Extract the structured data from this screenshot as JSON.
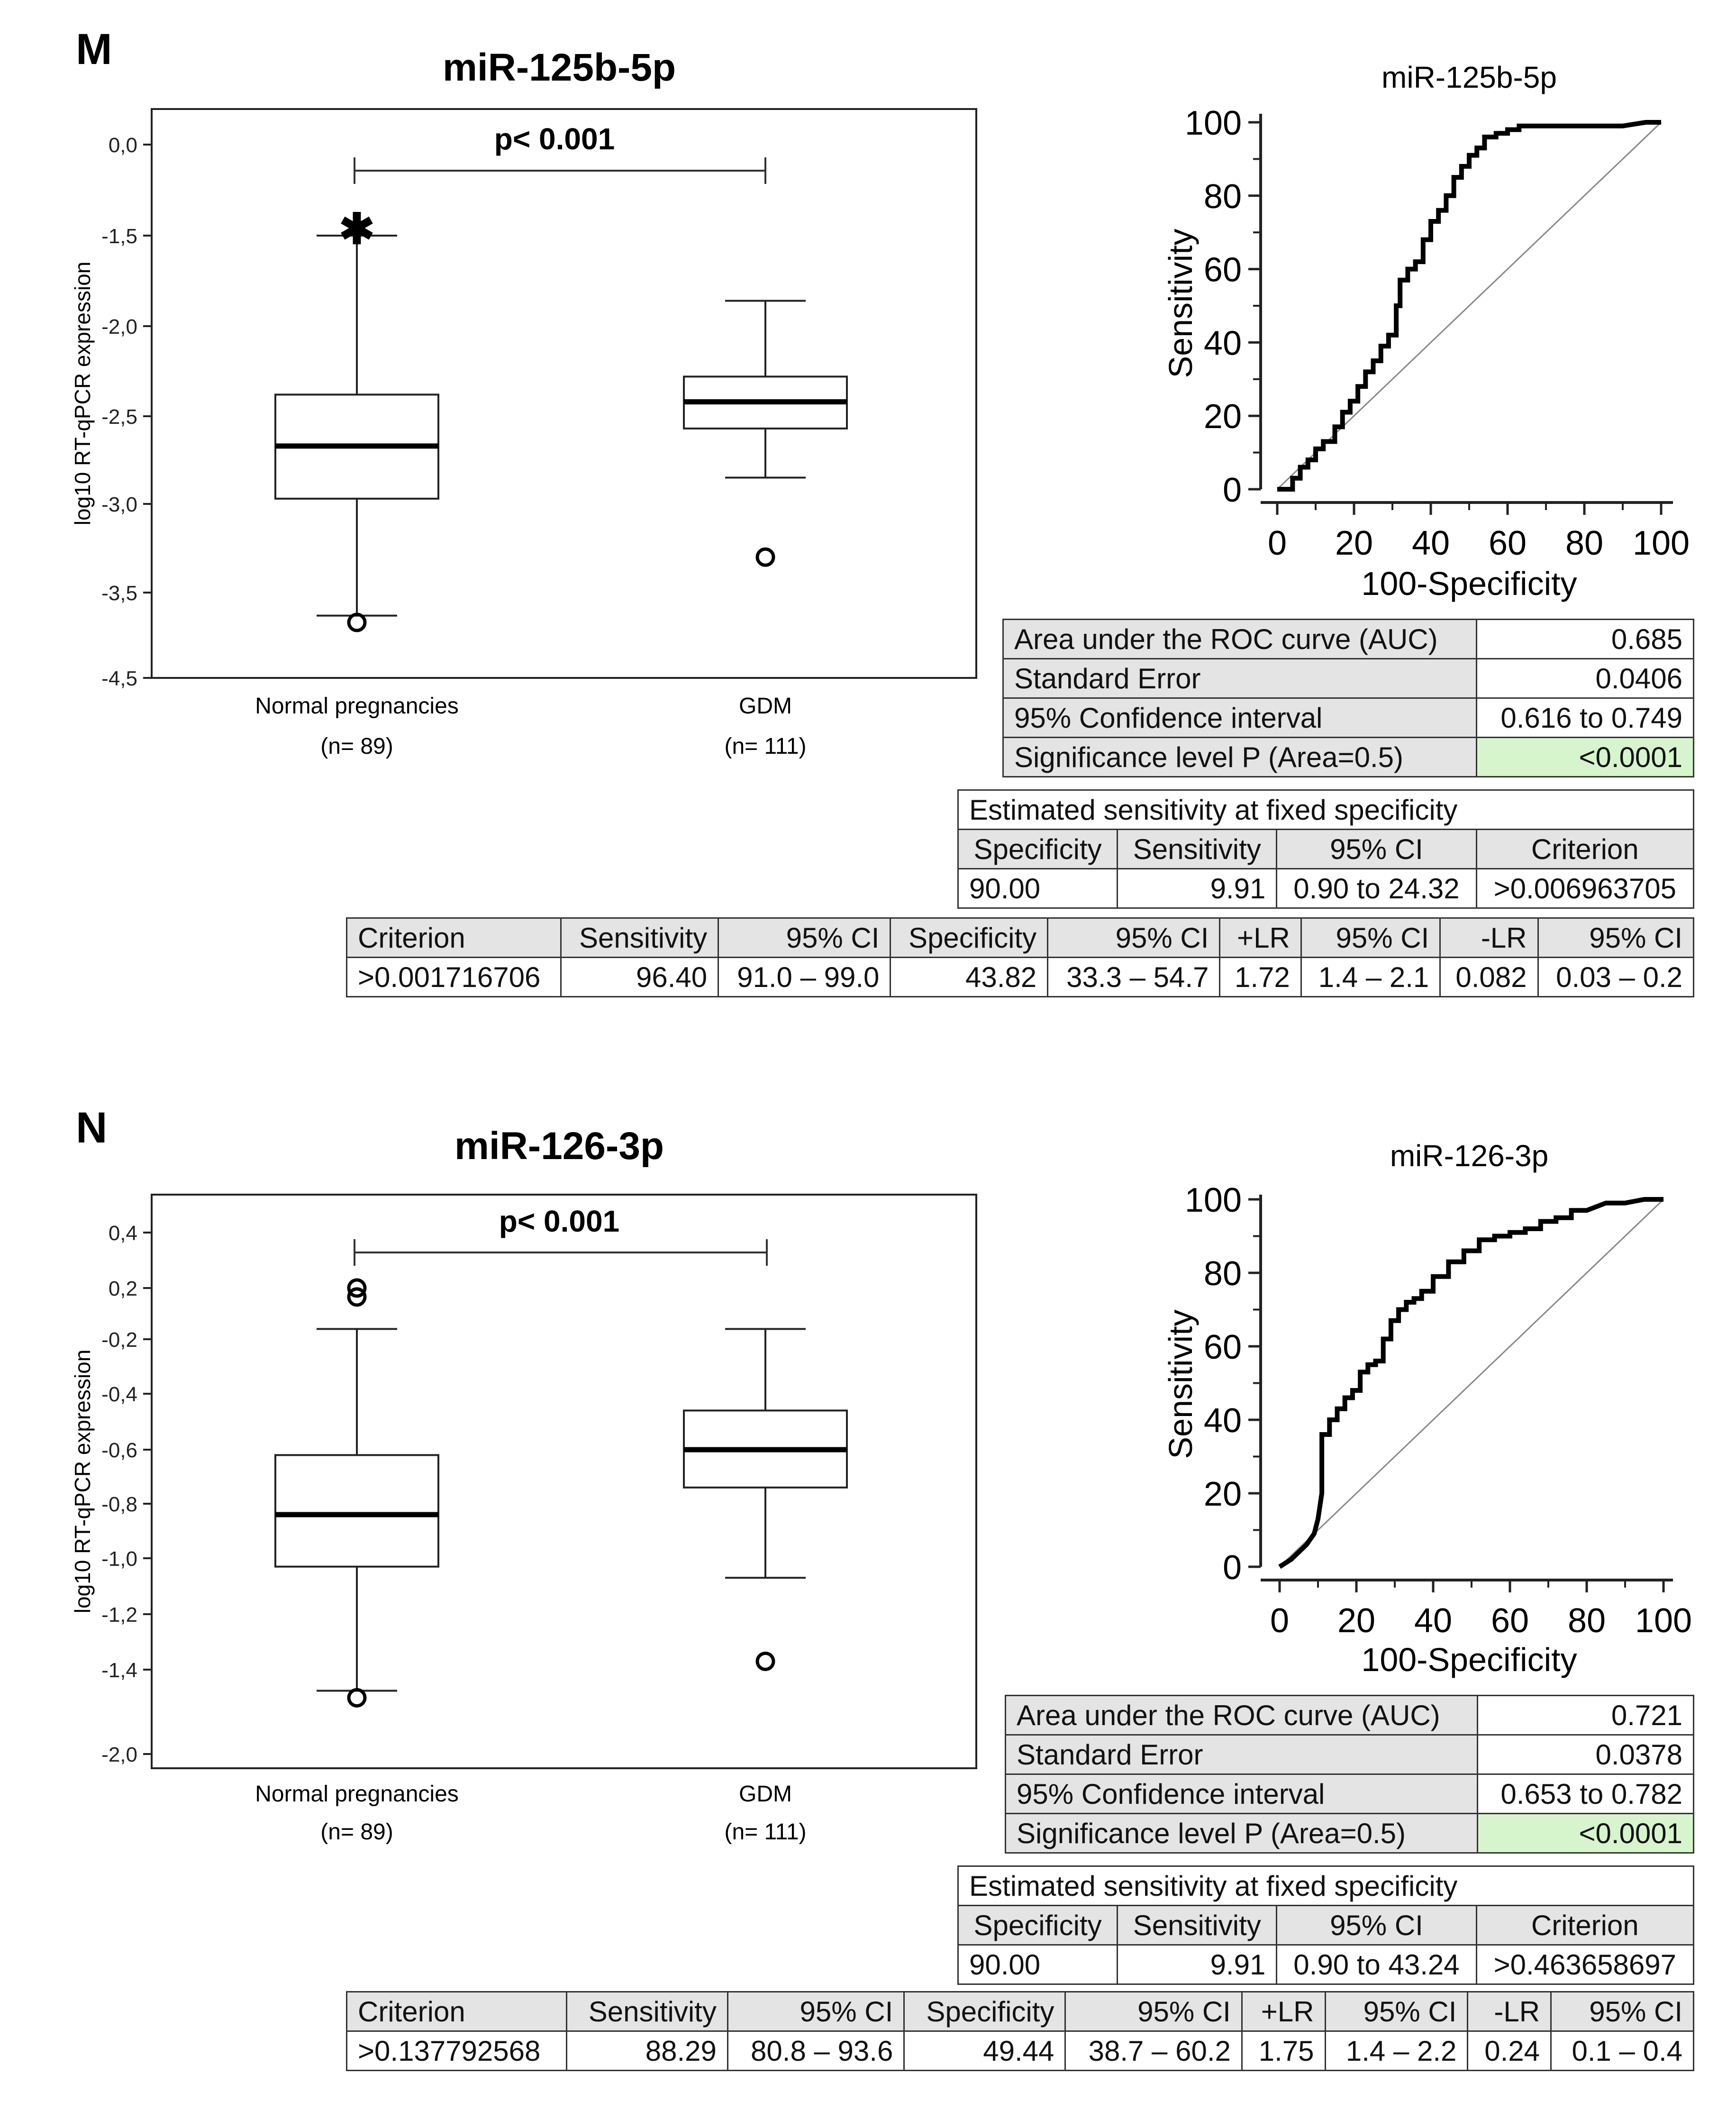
{
  "panels": [
    {
      "letter": "M",
      "box_title": "miR-125b-5p",
      "p_label": "p< 0.001",
      "ylabel": "log10 RT-qPCR expression",
      "yticks": [
        "0,0",
        "-1,5",
        "-2,0",
        "-2,5",
        "-3,0",
        "-3,5",
        "-4,5"
      ],
      "groups": [
        {
          "name": "Normal pregnancies",
          "n": "(n= 89)"
        },
        {
          "name": "GDM",
          "n": "(n= 111)"
        }
      ],
      "roc_title": "miR-125b-5p",
      "roc_ylabel": "Sensitivity",
      "roc_xlabel": "100-Specificity",
      "roc_ticks": [
        "0",
        "20",
        "40",
        "60",
        "80",
        "100"
      ],
      "auc_table": [
        {
          "label": "Area under the ROC curve (AUC)",
          "value": "0.685"
        },
        {
          "label": "Standard Error",
          "value": "0.0406"
        },
        {
          "label": "95% Confidence interval",
          "value": "0.616 to 0.749"
        },
        {
          "label": "Significance level P (Area=0.5)",
          "value": "<0.0001"
        }
      ],
      "fixed_spec": {
        "title": "Estimated sensitivity at fixed specificity",
        "headers": [
          "Specificity",
          "Sensitivity",
          "95% CI",
          "Criterion"
        ],
        "values": [
          "90.00",
          "9.91",
          "0.90 to 24.32",
          ">0.006963705"
        ]
      },
      "criterion": {
        "headers": [
          "Criterion",
          "Sensitivity",
          "95% CI",
          "Specificity",
          "95% CI",
          "+LR",
          "95% CI",
          "-LR",
          "95% CI"
        ],
        "values": [
          ">0.001716706",
          "96.40",
          "91.0 – 99.0",
          "43.82",
          "33.3 – 54.7",
          "1.72",
          "1.4 – 2.1",
          "0.082",
          "0.03 – 0.2"
        ]
      }
    },
    {
      "letter": "N",
      "box_title": "miR-126-3p",
      "p_label": "p< 0.001",
      "ylabel": "log10 RT-qPCR expression",
      "yticks": [
        "0,4",
        "0,2",
        "-0,2",
        "-0,4",
        "-0,6",
        "-0,8",
        "-1,0",
        "-1,2",
        "-1,4",
        "-2,0"
      ],
      "groups": [
        {
          "name": "Normal pregnancies",
          "n": "(n= 89)"
        },
        {
          "name": "GDM",
          "n": "(n= 111)"
        }
      ],
      "roc_title": "miR-126-3p",
      "roc_ylabel": "Sensitivity",
      "roc_xlabel": "100-Specificity",
      "roc_ticks": [
        "0",
        "20",
        "40",
        "60",
        "80",
        "100"
      ],
      "auc_table": [
        {
          "label": "Area under the ROC curve (AUC)",
          "value": "0.721"
        },
        {
          "label": "Standard Error",
          "value": "0.0378"
        },
        {
          "label": "95% Confidence interval",
          "value": "0.653 to 0.782"
        },
        {
          "label": "Significance level P (Area=0.5)",
          "value": "<0.0001"
        }
      ],
      "fixed_spec": {
        "title": "Estimated sensitivity at fixed specificity",
        "headers": [
          "Specificity",
          "Sensitivity",
          "95% CI",
          "Criterion"
        ],
        "values": [
          "90.00",
          "9.91",
          "0.90 to 43.24",
          ">0.463658697"
        ]
      },
      "criterion": {
        "headers": [
          "Criterion",
          "Sensitivity",
          "95% CI",
          "Specificity",
          "95% CI",
          "+LR",
          "95% CI",
          "-LR",
          "95% CI"
        ],
        "values": [
          ">0.137792568",
          "88.29",
          "80.8 – 93.6",
          "49.44",
          "38.7 – 60.2",
          "1.75",
          "1.4 – 2.2",
          "0.24",
          "0.1 – 0.4"
        ]
      }
    }
  ],
  "chart_data": [
    {
      "type": "box",
      "title": "miR-125b-5p",
      "ylabel": "log10 RT-qPCR expression",
      "yticks": [
        0.0,
        -1.5,
        -2.0,
        -2.5,
        -3.0,
        -3.5,
        -4.5
      ],
      "categories": [
        "Normal pregnancies",
        "GDM"
      ],
      "boxes": [
        {
          "name": "Normal pregnancies",
          "whisker_high": -1.5,
          "q3": -2.38,
          "median": -2.67,
          "q1": -2.97,
          "whisker_low": -3.77,
          "outliers": [
            -1.4,
            -3.85
          ]
        },
        {
          "name": "GDM",
          "whisker_high": -1.86,
          "q3": -2.28,
          "median": -2.42,
          "q1": -2.57,
          "whisker_low": -2.85,
          "outliers": [
            -3.3
          ]
        }
      ]
    },
    {
      "type": "line",
      "title": "miR-125b-5p",
      "xlabel": "100-Specificity",
      "ylabel": "Sensitivity",
      "xlim": [
        0,
        100
      ],
      "ylim": [
        0,
        100
      ],
      "series": [
        {
          "name": "ROC",
          "x": [
            0,
            4,
            4,
            6,
            6,
            8,
            8,
            10,
            10,
            12,
            12,
            15,
            15,
            17,
            17,
            19,
            19,
            21,
            21,
            23,
            23,
            25,
            25,
            27,
            27,
            29,
            29,
            31,
            31,
            32,
            32,
            34,
            34,
            36,
            36,
            38,
            38,
            40,
            40,
            42,
            42,
            44,
            44,
            46,
            46,
            48,
            48,
            50,
            50,
            52,
            52,
            54,
            54,
            57,
            57,
            60,
            60,
            63,
            63,
            66,
            70,
            80,
            90,
            96,
            100
          ],
          "y": [
            0,
            0,
            3,
            3,
            6,
            6,
            8,
            8,
            11,
            11,
            13,
            13,
            17,
            17,
            21,
            21,
            24,
            24,
            28,
            28,
            32,
            32,
            35,
            35,
            39,
            39,
            42,
            42,
            50,
            50,
            57,
            57,
            60,
            60,
            62,
            62,
            68,
            68,
            73,
            73,
            76,
            76,
            80,
            80,
            85,
            85,
            88,
            88,
            91,
            91,
            93,
            93,
            96,
            96,
            97,
            97,
            98,
            98,
            99,
            99,
            99,
            99,
            99,
            100,
            100
          ]
        },
        {
          "name": "Reference",
          "x": [
            0,
            100
          ],
          "y": [
            0,
            100
          ]
        }
      ]
    },
    {
      "type": "box",
      "title": "miR-126-3p",
      "ylabel": "log10 RT-qPCR expression",
      "yticks": [
        0.4,
        0.2,
        -0.2,
        -0.4,
        -0.6,
        -0.8,
        -1.0,
        -1.2,
        -1.4,
        -2.0
      ],
      "categories": [
        "Normal pregnancies",
        "GDM"
      ],
      "boxes": [
        {
          "name": "Normal pregnancies",
          "whisker_high": -0.12,
          "q3": -0.62,
          "median": -0.84,
          "q1": -1.03,
          "whisker_low": -1.55,
          "outliers": [
            0.2,
            0.13,
            -1.6
          ]
        },
        {
          "name": "GDM",
          "whisker_high": -0.12,
          "q3": -0.46,
          "median": -0.6,
          "q1": -0.74,
          "whisker_low": -1.07,
          "outliers": [
            -1.37
          ]
        }
      ]
    },
    {
      "type": "line",
      "title": "miR-126-3p",
      "xlabel": "100-Specificity",
      "ylabel": "Sensitivity",
      "xlim": [
        0,
        100
      ],
      "ylim": [
        0,
        100
      ],
      "series": [
        {
          "name": "ROC",
          "x": [
            0,
            3,
            5,
            7,
            9,
            10,
            11,
            11,
            13,
            13,
            15,
            15,
            17,
            17,
            19,
            19,
            21,
            21,
            23,
            23,
            25,
            25,
            27,
            27,
            29,
            29,
            31,
            31,
            33,
            33,
            35,
            35,
            37,
            37,
            40,
            40,
            44,
            44,
            48,
            48,
            52,
            52,
            56,
            56,
            60,
            60,
            64,
            64,
            68,
            68,
            72,
            72,
            76,
            76,
            80,
            85,
            90,
            95,
            100
          ],
          "y": [
            0,
            2,
            4,
            6,
            9,
            13,
            20,
            36,
            36,
            40,
            40,
            43,
            43,
            46,
            46,
            48,
            48,
            53,
            53,
            55,
            55,
            56,
            56,
            62,
            62,
            67,
            67,
            70,
            70,
            72,
            72,
            73,
            73,
            75,
            75,
            79,
            79,
            83,
            83,
            86,
            86,
            89,
            89,
            90,
            90,
            91,
            91,
            92,
            92,
            94,
            94,
            95,
            95,
            97,
            97,
            99,
            99,
            100,
            100
          ]
        },
        {
          "name": "Reference",
          "x": [
            0,
            100
          ],
          "y": [
            0,
            100
          ]
        }
      ]
    }
  ]
}
